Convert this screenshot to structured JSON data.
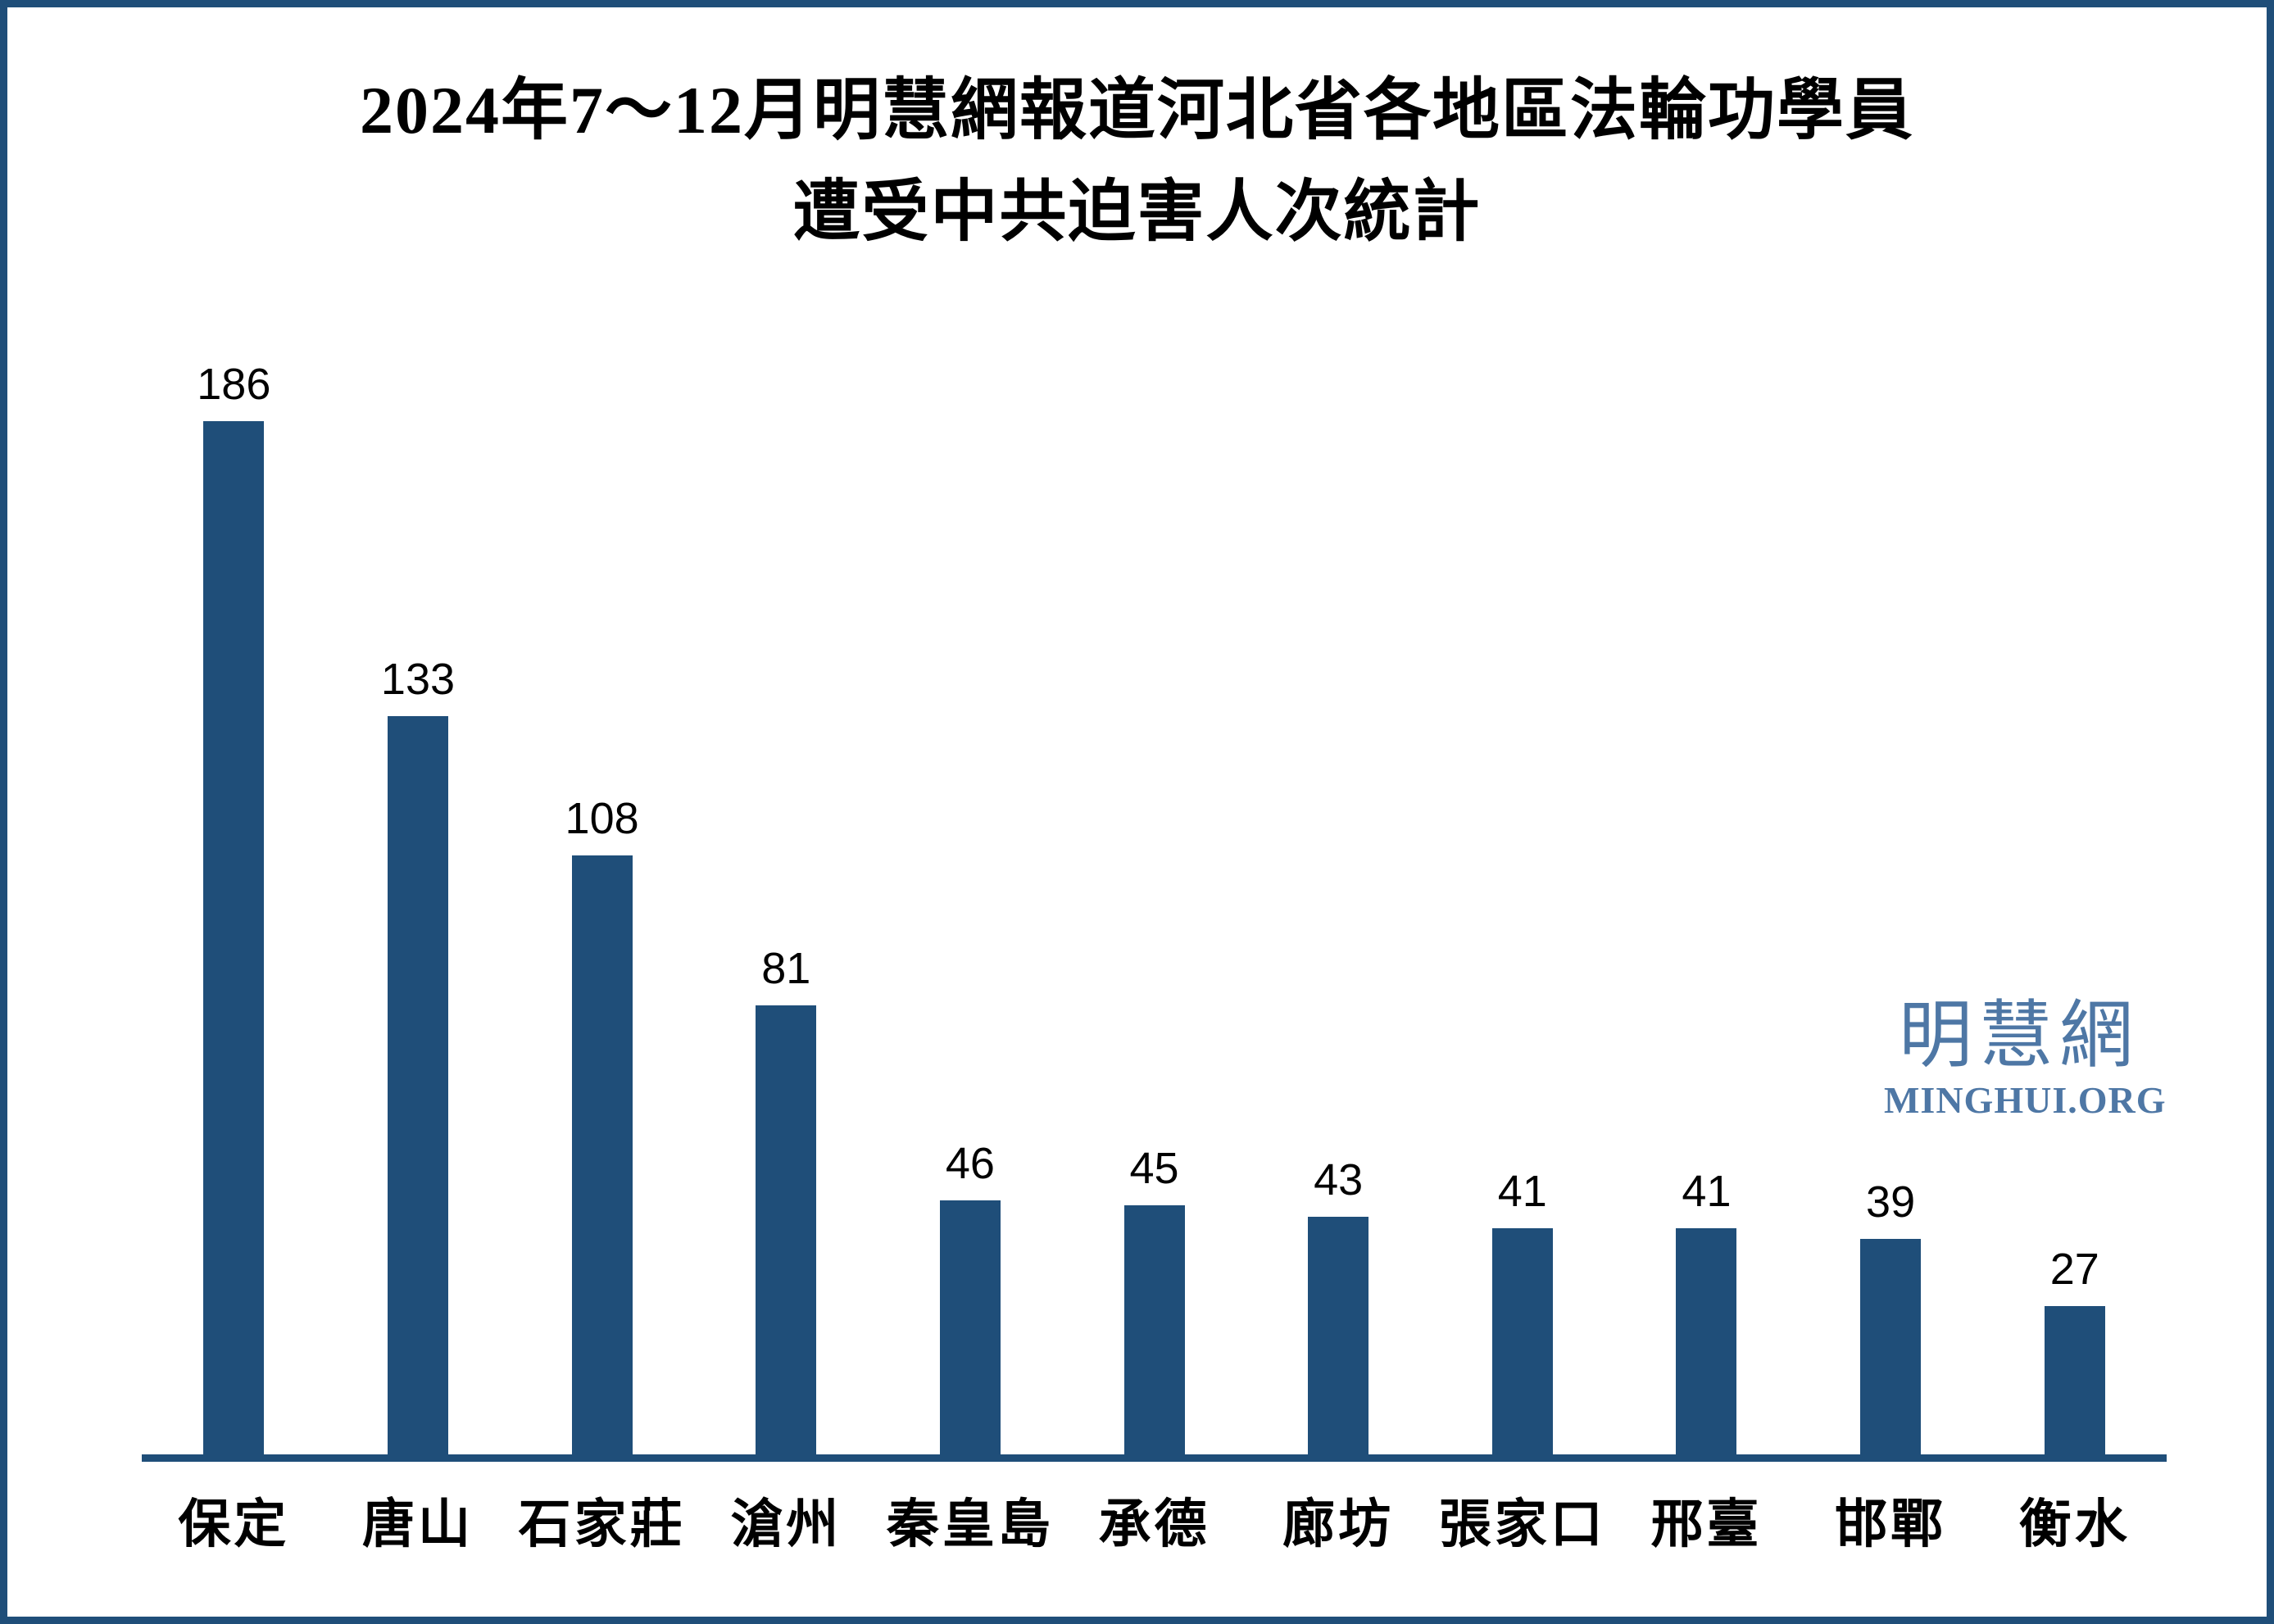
{
  "frame": {
    "border_color": "#1F4E79",
    "background_color": "#FFFFFF"
  },
  "title": {
    "line1": "2024年7～12月明慧網報道河北省各地區法輪功學員",
    "line2": "遭受中共迫害人次統計"
  },
  "watermark": {
    "cjk": "明慧網",
    "latin": "MINGHUI.ORG",
    "color": "#4E77A5"
  },
  "chart_data": {
    "type": "bar",
    "title": "2024年7～12月明慧網報道河北省各地區法輪功學員遭受中共迫害人次統計",
    "categories": [
      "保定",
      "唐山",
      "石家莊",
      "滄州",
      "秦皇島",
      "承德",
      "廊坊",
      "張家口",
      "邢臺",
      "邯鄲",
      "衡水"
    ],
    "values": [
      186,
      133,
      108,
      81,
      46,
      45,
      43,
      41,
      41,
      39,
      27
    ],
    "xlabel": "",
    "ylabel": "",
    "ylim": [
      0,
      196
    ],
    "bar_color": "#1F4E79",
    "data_labels": true,
    "grid": false,
    "legend": false,
    "y_axis_visible": false,
    "x_axis_line_color": "#1F4E79"
  }
}
